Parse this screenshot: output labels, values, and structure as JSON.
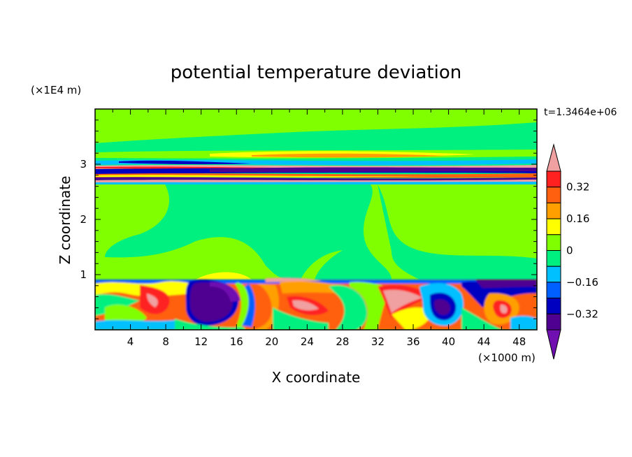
{
  "chart_data": {
    "type": "heatmap",
    "title": "potential temperature deviation",
    "xlabel": "X coordinate",
    "ylabel": "Z coordinate",
    "x_units": "(×1000 m)",
    "y_units": "(×1E4 m)",
    "time_label": "t=1.3464e+06",
    "xlim": [
      0,
      50
    ],
    "ylim": [
      0,
      4
    ],
    "x_ticks": [
      4,
      8,
      12,
      16,
      20,
      24,
      28,
      32,
      36,
      40,
      44,
      48
    ],
    "y_ticks": [
      1,
      2,
      3
    ],
    "colorbar": {
      "levels": [
        -0.4,
        -0.32,
        -0.24,
        -0.16,
        -0.08,
        0,
        0.08,
        0.16,
        0.24,
        0.32,
        0.4
      ],
      "tick_labels": [
        "0.32",
        "0.16",
        "0",
        "−0.16",
        "−0.32"
      ],
      "tick_values": [
        0.32,
        0.16,
        0,
        -0.16,
        -0.32
      ],
      "colors_top_to_bottom": [
        "#f0a0a0",
        "#ff2020",
        "#ff6010",
        "#ffa000",
        "#ffff00",
        "#80ff00",
        "#00f080",
        "#00c0ff",
        "#0060ff",
        "#0000c0",
        "#500090",
        "#7010b0"
      ],
      "extend": "both"
    },
    "fields": {
      "upper_atmosphere": "near zero (green), slight positive",
      "inversion_band_z": [
        2.7,
        3.3
      ],
      "boundary_layer_top_z": 0.9,
      "boundary_layer": "turbulent mix of positive and negative deviations"
    }
  }
}
